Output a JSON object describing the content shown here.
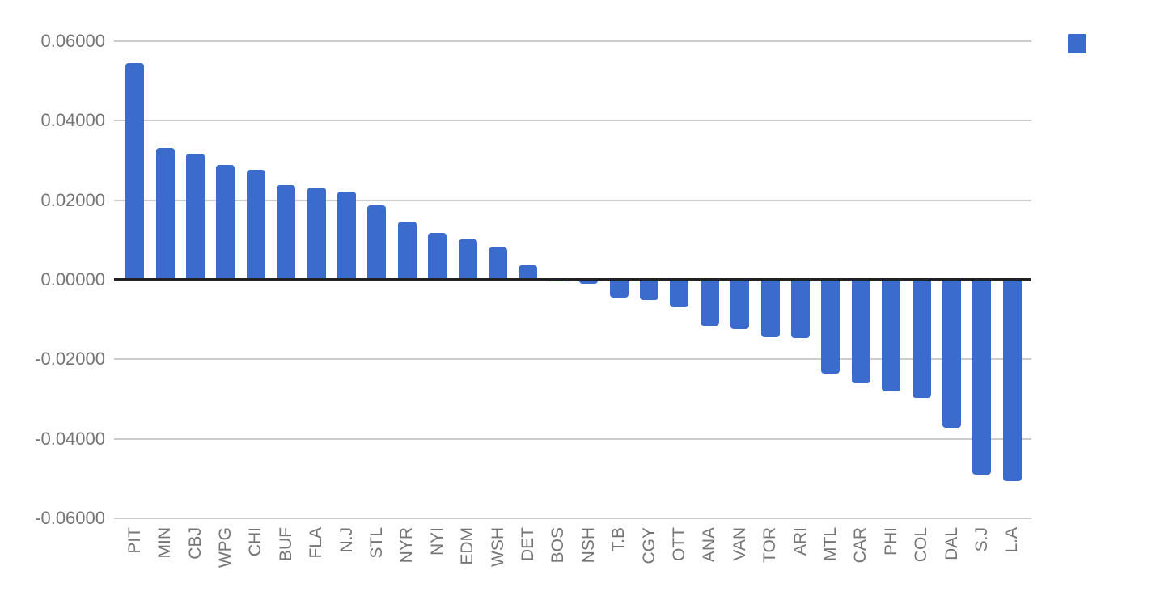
{
  "chart_data": {
    "type": "bar",
    "title": "",
    "xlabel": "",
    "ylabel": "",
    "categories": [
      "PIT",
      "MIN",
      "CBJ",
      "WPG",
      "CHI",
      "BUF",
      "FLA",
      "N.J",
      "STL",
      "NYR",
      "NYI",
      "EDM",
      "WSH",
      "DET",
      "BOS",
      "NSH",
      "T.B",
      "CGY",
      "OTT",
      "ANA",
      "VAN",
      "TOR",
      "ARI",
      "MTL",
      "CAR",
      "PHI",
      "COL",
      "DAL",
      "S.J",
      "L.A"
    ],
    "values": [
      0.0545,
      0.0332,
      0.0317,
      0.0289,
      0.0276,
      0.0239,
      0.0231,
      0.0222,
      0.0187,
      0.0146,
      0.0117,
      0.0102,
      0.0081,
      0.0037,
      -0.0004,
      -0.001,
      -0.0044,
      -0.005,
      -0.007,
      -0.0116,
      -0.0124,
      -0.0144,
      -0.0146,
      -0.0237,
      -0.026,
      -0.0281,
      -0.0297,
      -0.0372,
      -0.0491,
      -0.0507
    ],
    "ylim": [
      -0.06,
      0.06
    ],
    "yticks": [
      {
        "label": "0.06000",
        "value": 0.06
      },
      {
        "label": "0.04000",
        "value": 0.04
      },
      {
        "label": "0.02000",
        "value": 0.02
      },
      {
        "label": "0.00000",
        "value": 0.0
      },
      {
        "label": "-0.02000",
        "value": -0.02
      },
      {
        "label": "-0.04000",
        "value": -0.04
      },
      {
        "label": "-0.06000",
        "value": -0.06
      }
    ],
    "grid": true,
    "legend": {
      "position": "top-right",
      "label": ""
    },
    "bar_color": "#3A6BCD"
  },
  "colors": {
    "background": "#ffffff",
    "bar": "#3A6BCD",
    "gridline": "#cccccc",
    "zero_axis": "#212121",
    "tick_text": "#757575"
  }
}
